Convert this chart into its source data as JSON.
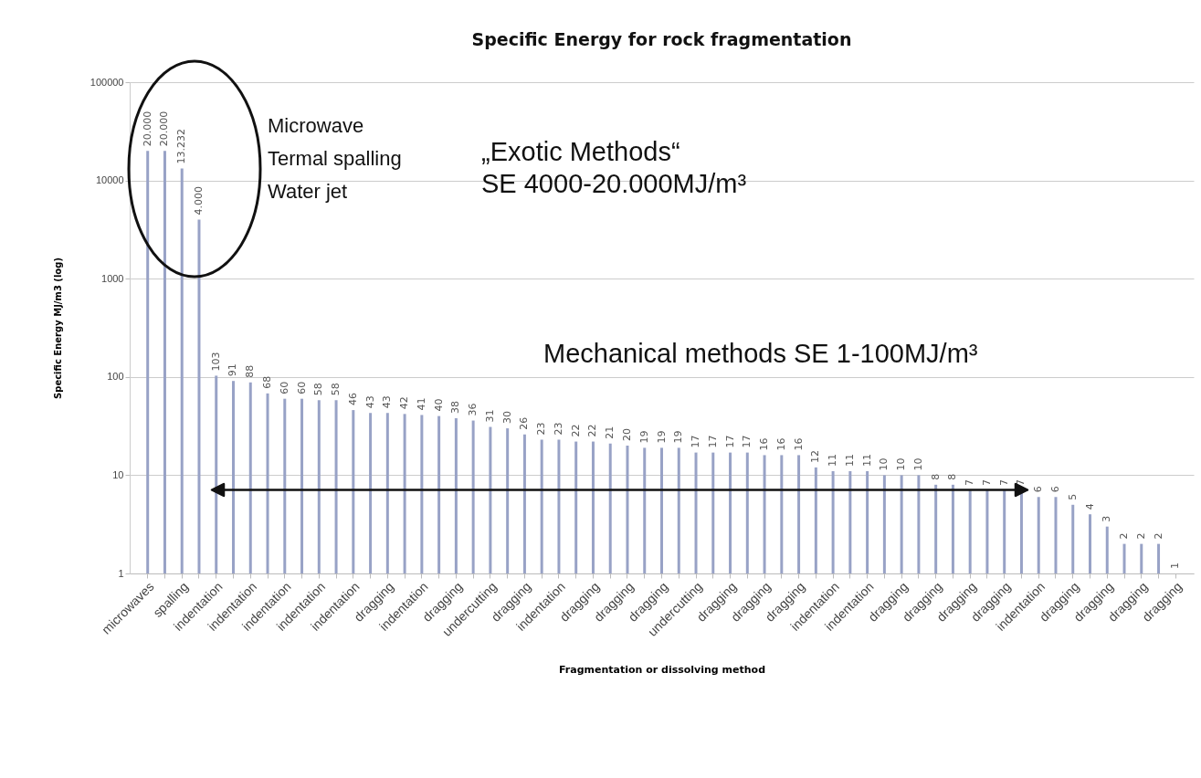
{
  "chart_data": {
    "type": "bar",
    "title": "Specific Energy for rock fragmentation",
    "xlabel": "Fragmentation or dissolving method",
    "ylabel": "Specific Energy MJ/m3     (log)",
    "categories": [
      "microwaves",
      null,
      "spalling",
      null,
      "indentation",
      null,
      "indentation",
      null,
      "indentation",
      null,
      "indentation",
      null,
      "indentation",
      null,
      "dragging",
      null,
      "indentation",
      null,
      "dragging",
      null,
      "undercutting",
      null,
      "dragging",
      null,
      "indentation",
      null,
      "dragging",
      null,
      "dragging",
      null,
      "dragging",
      null,
      "undercutting",
      null,
      "dragging",
      null,
      "dragging",
      null,
      "dragging",
      null,
      "indentation",
      null,
      "indentation",
      null,
      "dragging",
      null,
      "dragging",
      null,
      "dragging",
      null,
      "dragging",
      null,
      "indentation",
      null,
      "dragging",
      null,
      "dragging",
      null,
      "dragging",
      null,
      "dragging"
    ],
    "values": [
      20000,
      20000,
      13232,
      4000,
      103,
      91,
      88,
      68,
      60,
      60,
      58,
      58,
      46,
      43,
      43,
      42,
      41,
      40,
      38,
      36,
      31,
      30,
      26,
      23,
      23,
      22,
      22,
      21,
      20,
      19,
      19,
      19,
      17,
      17,
      17,
      17,
      16,
      16,
      16,
      12,
      11,
      11,
      11,
      10,
      10,
      10,
      8,
      8,
      7,
      7,
      7,
      7,
      6,
      6,
      5,
      4,
      3,
      2,
      2,
      2,
      1
    ],
    "value_labels": [
      "20.000",
      "20.000",
      "13.232",
      "4.000",
      "103",
      "91",
      "88",
      "68",
      "60",
      "60",
      "58",
      "58",
      "46",
      "43",
      "43",
      "42",
      "41",
      "40",
      "38",
      "36",
      "31",
      "30",
      "26",
      "23",
      "23",
      "22",
      "22",
      "21",
      "20",
      "19",
      "19",
      "19",
      "17",
      "17",
      "17",
      "17",
      "16",
      "16",
      "16",
      "12",
      "11",
      "11",
      "11",
      "10",
      "10",
      "10",
      "8",
      "8",
      "7",
      "7",
      "7",
      "7",
      "6",
      "6",
      "5",
      "4",
      "3",
      "2",
      "2",
      "2",
      "1"
    ],
    "color": "#98a2c6",
    "log": true,
    "ylim": [
      1,
      100000
    ],
    "yticks": [
      1,
      10,
      100,
      1000,
      10000,
      100000
    ],
    "grid": "y",
    "annotations": [
      "Microwave",
      "Termal spalling",
      "Water jet",
      "„Exotic Methods“",
      "SE 4000-20.000MJ/m³",
      "Mechanical methods  SE 1-100MJ/m³"
    ]
  }
}
